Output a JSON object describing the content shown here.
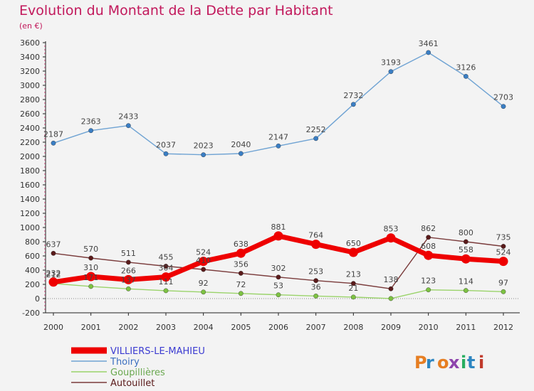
{
  "chart_data": {
    "type": "line",
    "title": "Evolution du Montant de la Dette par Habitant",
    "subtitle": "(en €)",
    "x": [
      "2000",
      "2001",
      "2002",
      "2003",
      "2004",
      "2005",
      "2006",
      "2007",
      "2008",
      "2009",
      "2010",
      "2011",
      "2012"
    ],
    "ylim": [
      -200,
      3600
    ],
    "yticks": [
      -200,
      0,
      200,
      400,
      600,
      800,
      1000,
      1200,
      1400,
      1600,
      1800,
      2000,
      2200,
      2400,
      2600,
      2800,
      3000,
      3200,
      3400,
      3600
    ],
    "grid": false,
    "legend_position": "bottom-left",
    "series": [
      {
        "name": "VILLIERS-LE-MAHIEU",
        "color": "#ee0000",
        "marker_color": "#ee0000",
        "values": [
          232,
          310,
          266,
          304,
          524,
          638,
          881,
          764,
          650,
          853,
          608,
          558,
          524
        ]
      },
      {
        "name": "Thoiry",
        "color": "#6fa3d3",
        "marker_color": "#3a7ec4",
        "values": [
          2187,
          2363,
          2433,
          2037,
          2023,
          2040,
          2147,
          2252,
          2732,
          3193,
          3461,
          3126,
          2703
        ]
      },
      {
        "name": "Goupillières",
        "color": "#9ad36a",
        "marker_color": "#7dc242",
        "values": [
          212,
          171,
          137,
          111,
          92,
          72,
          53,
          36,
          21,
          1,
          123,
          114,
          97
        ]
      },
      {
        "name": "Autouillet",
        "color": "#7a3b3b",
        "marker_color": "#5a1a1a",
        "values": [
          637,
          570,
          511,
          455,
          410,
          356,
          302,
          253,
          213,
          138,
          862,
          800,
          735
        ]
      }
    ],
    "labels": [
      [
        "232",
        "310",
        "266",
        "304",
        "524",
        "638",
        "881",
        "764",
        "650",
        "853",
        "608",
        "558",
        "524"
      ],
      [
        "2187",
        "2363",
        "2433",
        "2037",
        "2023",
        "2040",
        "2147",
        "2252",
        "2732",
        "3193",
        "3461",
        "3126",
        "2703"
      ],
      [
        "212",
        "171",
        "137",
        "111",
        "92",
        "72",
        "53",
        "36",
        "21",
        "",
        "123",
        "114",
        "97"
      ],
      [
        "637",
        "570",
        "511",
        "455",
        "410",
        "356",
        "302",
        "253",
        "213",
        "138",
        "862",
        "800",
        "735"
      ]
    ]
  },
  "watermark": {
    "text": "Proxiti"
  }
}
